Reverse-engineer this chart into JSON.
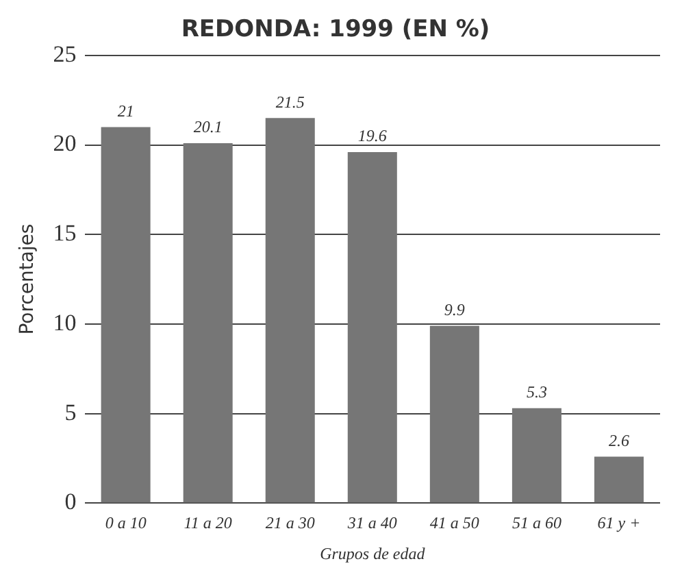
{
  "chart_data": {
    "type": "bar",
    "title": "REDONDA: 1999 (EN %)",
    "xlabel": "Grupos de edad",
    "ylabel": "Porcentajes",
    "categories": [
      "0 a 10",
      "11 a 20",
      "21 a 30",
      "31 a 40",
      "41 a 50",
      "51 a 60",
      "61 y +"
    ],
    "values": [
      21,
      20.1,
      21.5,
      19.6,
      9.9,
      5.3,
      2.6
    ],
    "color": "#767676",
    "ylim": [
      0,
      25
    ],
    "yticks": [
      0,
      5,
      10,
      15,
      20,
      25
    ],
    "grid": "y",
    "data_labels": true
  }
}
